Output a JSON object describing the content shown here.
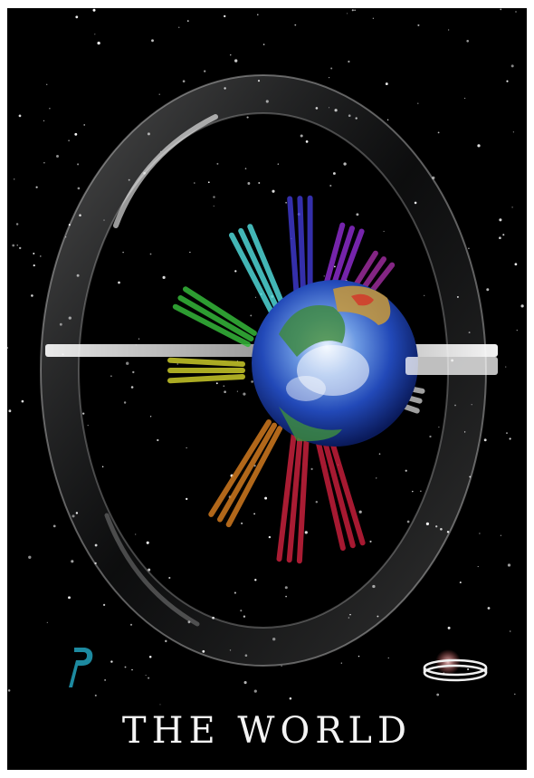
{
  "card": {
    "title": "THE WORLD",
    "background_color": "#000000"
  },
  "icons": {
    "publisher_mark": "lightning-p-logo",
    "bottom_right_symbol": "ringed-planet-symbol"
  },
  "scene": {
    "figures_colors": [
      "#4fd6d6",
      "#3e38c8",
      "#8a2bc9",
      "#9a2c9a",
      "#bdbdbd",
      "#c41e3a",
      "#c7213d",
      "#d17a1f",
      "#c9c92a",
      "#35b83a"
    ]
  }
}
